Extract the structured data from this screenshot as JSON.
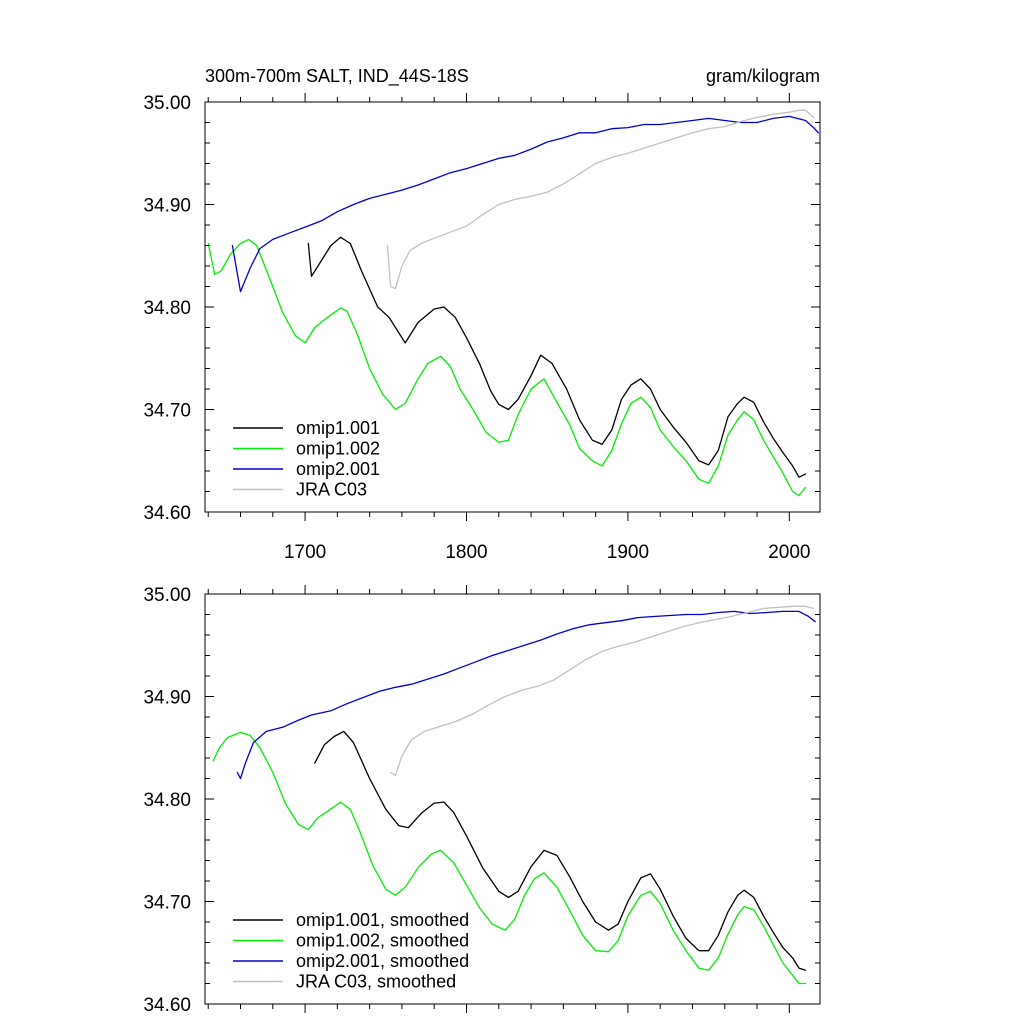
{
  "chart_data": [
    {
      "type": "line",
      "title_left": "300m-700m SALT, IND_44S-18S",
      "title_right": "gram/kilogram",
      "xlabel": "",
      "ylabel": "",
      "xlim": [
        1638,
        2019
      ],
      "ylim": [
        34.6,
        35.0
      ],
      "xticks": [
        1700,
        1800,
        1900,
        2000
      ],
      "xtick_labels": [
        "1700",
        "1800",
        "1900",
        "2000"
      ],
      "yticks": [
        34.6,
        34.7,
        34.8,
        34.9,
        35.0
      ],
      "ytick_labels": [
        "34.60",
        "34.70",
        "34.80",
        "34.90",
        "35.00"
      ],
      "grid": false,
      "legend_position": "bottom-left",
      "series": [
        {
          "name": "omip1.001",
          "color": "#000000",
          "x": [
            1702,
            1704,
            1710,
            1716,
            1722,
            1728,
            1735,
            1745,
            1752,
            1762,
            1770,
            1780,
            1786,
            1793,
            1800,
            1808,
            1815,
            1820,
            1826,
            1832,
            1840,
            1846,
            1853,
            1862,
            1870,
            1878,
            1884,
            1890,
            1896,
            1902,
            1908,
            1914,
            1920,
            1928,
            1936,
            1944,
            1950,
            1956,
            1962,
            1968,
            1972,
            1978,
            1984,
            1990,
            1996,
            2002,
            2006,
            2010
          ],
          "y": [
            34.862,
            34.83,
            34.845,
            34.86,
            34.868,
            34.862,
            34.835,
            34.8,
            34.79,
            34.765,
            34.785,
            34.798,
            34.8,
            34.79,
            34.77,
            34.745,
            34.718,
            34.705,
            34.7,
            34.71,
            34.733,
            34.753,
            34.745,
            34.72,
            34.69,
            34.67,
            34.666,
            34.68,
            34.71,
            34.724,
            34.73,
            34.72,
            34.7,
            34.683,
            34.668,
            34.65,
            34.646,
            34.66,
            34.693,
            34.706,
            34.712,
            34.707,
            34.688,
            34.672,
            34.658,
            34.645,
            34.634,
            34.637
          ]
        },
        {
          "name": "omip1.002",
          "color": "#00ee00",
          "x": [
            1640,
            1644,
            1648,
            1654,
            1660,
            1665,
            1670,
            1678,
            1686,
            1694,
            1700,
            1706,
            1714,
            1722,
            1726,
            1732,
            1740,
            1748,
            1756,
            1762,
            1770,
            1776,
            1784,
            1790,
            1796,
            1804,
            1812,
            1820,
            1826,
            1832,
            1840,
            1848,
            1855,
            1864,
            1870,
            1878,
            1884,
            1890,
            1896,
            1902,
            1908,
            1914,
            1920,
            1928,
            1936,
            1944,
            1950,
            1956,
            1962,
            1968,
            1972,
            1978,
            1984,
            1990,
            1996,
            2002,
            2006,
            2010
          ],
          "y": [
            34.862,
            34.832,
            34.835,
            34.852,
            34.862,
            34.866,
            34.86,
            34.828,
            34.795,
            34.772,
            34.765,
            34.78,
            34.79,
            34.799,
            34.796,
            34.775,
            34.74,
            34.715,
            34.7,
            34.706,
            34.73,
            34.745,
            34.752,
            34.742,
            34.72,
            34.7,
            34.678,
            34.668,
            34.67,
            34.695,
            34.72,
            34.73,
            34.71,
            34.685,
            34.662,
            34.65,
            34.645,
            34.66,
            34.686,
            34.706,
            34.712,
            34.702,
            34.68,
            34.664,
            34.65,
            34.632,
            34.628,
            34.645,
            34.675,
            34.69,
            34.698,
            34.69,
            34.67,
            34.654,
            34.638,
            34.62,
            34.616,
            34.624
          ]
        },
        {
          "name": "omip2.001",
          "color": "#0000cc",
          "x": [
            1655,
            1660,
            1666,
            1672,
            1680,
            1690,
            1700,
            1710,
            1720,
            1730,
            1740,
            1750,
            1760,
            1770,
            1780,
            1790,
            1800,
            1810,
            1820,
            1830,
            1840,
            1850,
            1860,
            1870,
            1880,
            1890,
            1900,
            1910,
            1920,
            1930,
            1940,
            1950,
            1960,
            1970,
            1980,
            1990,
            2000,
            2010,
            2015,
            2018
          ],
          "y": [
            34.86,
            34.815,
            34.838,
            34.857,
            34.866,
            34.872,
            34.878,
            34.884,
            34.893,
            34.9,
            34.906,
            34.91,
            34.914,
            34.919,
            34.925,
            34.931,
            34.935,
            34.94,
            34.945,
            34.948,
            34.954,
            34.961,
            34.965,
            34.97,
            34.97,
            34.974,
            34.975,
            34.978,
            34.978,
            34.98,
            34.982,
            34.984,
            34.982,
            34.98,
            34.98,
            34.984,
            34.986,
            34.982,
            34.975,
            34.97
          ]
        },
        {
          "name": "JRA C03",
          "color": "#c0c0c0",
          "x": [
            1751,
            1753,
            1756,
            1760,
            1765,
            1772,
            1780,
            1790,
            1800,
            1810,
            1820,
            1830,
            1840,
            1850,
            1860,
            1870,
            1880,
            1890,
            1900,
            1910,
            1920,
            1930,
            1940,
            1950,
            1960,
            1970,
            1980,
            1990,
            2000,
            2006,
            2010,
            2015
          ],
          "y": [
            34.86,
            34.82,
            34.818,
            34.84,
            34.855,
            34.862,
            34.867,
            34.873,
            34.879,
            34.89,
            34.9,
            34.905,
            34.908,
            34.912,
            34.92,
            34.93,
            34.94,
            34.946,
            34.95,
            34.955,
            34.96,
            34.965,
            34.97,
            34.974,
            34.976,
            34.981,
            34.985,
            34.988,
            34.99,
            34.992,
            34.992,
            34.985
          ]
        }
      ]
    },
    {
      "type": "line",
      "xlabel": "",
      "ylabel": "",
      "xlim": [
        1638,
        2019
      ],
      "ylim": [
        34.6,
        35.0
      ],
      "yticks": [
        34.6,
        34.7,
        34.8,
        34.9,
        35.0
      ],
      "ytick_labels": [
        "34.60",
        "34.70",
        "34.80",
        "34.90",
        "35.00"
      ],
      "grid": false,
      "legend_position": "bottom-left",
      "series": [
        {
          "name": "omip1.001, smoothed",
          "color": "#000000",
          "x": [
            1706,
            1712,
            1718,
            1724,
            1730,
            1740,
            1750,
            1758,
            1764,
            1772,
            1780,
            1786,
            1792,
            1800,
            1810,
            1820,
            1826,
            1832,
            1840,
            1848,
            1856,
            1864,
            1872,
            1880,
            1888,
            1894,
            1900,
            1908,
            1914,
            1920,
            1928,
            1936,
            1944,
            1950,
            1956,
            1962,
            1968,
            1972,
            1978,
            1984,
            1990,
            1996,
            2002,
            2006,
            2010
          ],
          "y": [
            34.835,
            34.853,
            34.861,
            34.866,
            34.855,
            34.82,
            34.79,
            34.774,
            34.772,
            34.786,
            34.796,
            34.797,
            34.787,
            34.764,
            34.733,
            34.71,
            34.704,
            34.71,
            34.734,
            34.75,
            34.745,
            34.724,
            34.7,
            34.68,
            34.672,
            34.678,
            34.7,
            34.723,
            34.727,
            34.712,
            34.686,
            34.664,
            34.652,
            34.652,
            34.667,
            34.69,
            34.706,
            34.711,
            34.704,
            34.686,
            34.67,
            34.655,
            34.645,
            34.635,
            34.633
          ]
        },
        {
          "name": "omip1.002, smoothed",
          "color": "#00ee00",
          "x": [
            1643,
            1647,
            1652,
            1660,
            1666,
            1672,
            1680,
            1688,
            1696,
            1702,
            1708,
            1714,
            1722,
            1728,
            1734,
            1742,
            1750,
            1756,
            1762,
            1770,
            1778,
            1784,
            1792,
            1800,
            1808,
            1816,
            1824,
            1830,
            1836,
            1842,
            1848,
            1856,
            1864,
            1872,
            1880,
            1888,
            1894,
            1900,
            1908,
            1914,
            1920,
            1928,
            1936,
            1944,
            1950,
            1956,
            1962,
            1968,
            1972,
            1978,
            1984,
            1990,
            1996,
            2002,
            2006,
            2010
          ],
          "y": [
            34.837,
            34.85,
            34.86,
            34.865,
            34.862,
            34.85,
            34.826,
            34.795,
            34.775,
            34.77,
            34.782,
            34.788,
            34.797,
            34.79,
            34.768,
            34.735,
            34.712,
            34.706,
            34.714,
            34.733,
            34.746,
            34.75,
            34.738,
            34.716,
            34.694,
            34.678,
            34.672,
            34.683,
            34.706,
            34.722,
            34.728,
            34.714,
            34.691,
            34.667,
            34.652,
            34.651,
            34.662,
            34.686,
            34.706,
            34.71,
            34.698,
            34.672,
            34.652,
            34.635,
            34.633,
            34.645,
            34.668,
            34.687,
            34.695,
            34.692,
            34.676,
            34.658,
            34.64,
            34.628,
            34.62,
            34.62
          ]
        },
        {
          "name": "omip2.001, smoothed",
          "color": "#0000cc",
          "x": [
            1658,
            1660,
            1663,
            1668,
            1676,
            1686,
            1696,
            1704,
            1710,
            1716,
            1726,
            1736,
            1746,
            1756,
            1766,
            1776,
            1786,
            1796,
            1806,
            1816,
            1826,
            1836,
            1846,
            1856,
            1866,
            1876,
            1886,
            1896,
            1906,
            1916,
            1926,
            1936,
            1946,
            1956,
            1966,
            1976,
            1986,
            1996,
            2006,
            2012,
            2016
          ],
          "y": [
            34.826,
            34.82,
            34.835,
            34.855,
            34.866,
            34.87,
            34.877,
            34.882,
            34.884,
            34.886,
            34.893,
            34.899,
            34.905,
            34.909,
            34.912,
            34.917,
            34.922,
            34.928,
            34.934,
            34.94,
            34.945,
            34.95,
            34.955,
            34.961,
            34.966,
            34.97,
            34.972,
            34.974,
            34.977,
            34.978,
            34.979,
            34.98,
            34.98,
            34.982,
            34.983,
            34.981,
            34.982,
            34.983,
            34.983,
            34.978,
            34.973
          ]
        },
        {
          "name": "JRA C03, smoothed",
          "color": "#c0c0c0",
          "x": [
            1753,
            1756,
            1760,
            1766,
            1774,
            1784,
            1794,
            1804,
            1814,
            1824,
            1834,
            1844,
            1854,
            1864,
            1874,
            1884,
            1894,
            1904,
            1914,
            1924,
            1934,
            1944,
            1954,
            1964,
            1974,
            1984,
            1994,
            2002,
            2010,
            2015
          ],
          "y": [
            34.826,
            34.823,
            34.842,
            34.858,
            34.866,
            34.871,
            34.876,
            34.883,
            34.892,
            34.9,
            34.906,
            34.91,
            34.916,
            34.926,
            34.936,
            34.944,
            34.949,
            34.953,
            34.958,
            34.963,
            34.968,
            34.972,
            34.975,
            34.978,
            34.982,
            34.986,
            34.987,
            34.988,
            34.988,
            34.986
          ]
        }
      ]
    }
  ]
}
